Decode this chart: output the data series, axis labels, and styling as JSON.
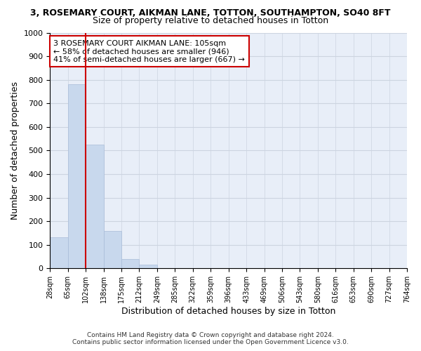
{
  "title": "3, ROSEMARY COURT, AIKMAN LANE, TOTTON, SOUTHAMPTON, SO40 8FT",
  "subtitle": "Size of property relative to detached houses in Totton",
  "xlabel": "Distribution of detached houses by size in Totton",
  "ylabel": "Number of detached properties",
  "bar_color": "#c8d8ed",
  "bar_edgecolor": "#a8bcd8",
  "tick_labels": [
    "28sqm",
    "65sqm",
    "102sqm",
    "138sqm",
    "175sqm",
    "212sqm",
    "249sqm",
    "285sqm",
    "322sqm",
    "359sqm",
    "396sqm",
    "433sqm",
    "469sqm",
    "506sqm",
    "543sqm",
    "580sqm",
    "616sqm",
    "653sqm",
    "690sqm",
    "727sqm",
    "764sqm"
  ],
  "bar_heights": [
    133,
    780,
    525,
    158,
    38,
    15,
    0,
    0,
    0,
    0,
    0,
    0,
    0,
    0,
    0,
    0,
    0,
    0,
    0,
    0
  ],
  "vline_color": "#cc0000",
  "annotation_text": "3 ROSEMARY COURT AIKMAN LANE: 105sqm\n← 58% of detached houses are smaller (946)\n41% of semi-detached houses are larger (667) →",
  "annotation_box_edgecolor": "#cc0000",
  "ylim": [
    0,
    1000
  ],
  "yticks": [
    0,
    100,
    200,
    300,
    400,
    500,
    600,
    700,
    800,
    900,
    1000
  ],
  "grid_color": "#ccd4e0",
  "background_color": "#e8eef8",
  "footer": "Contains HM Land Registry data © Crown copyright and database right 2024.\nContains public sector information licensed under the Open Government Licence v3.0."
}
